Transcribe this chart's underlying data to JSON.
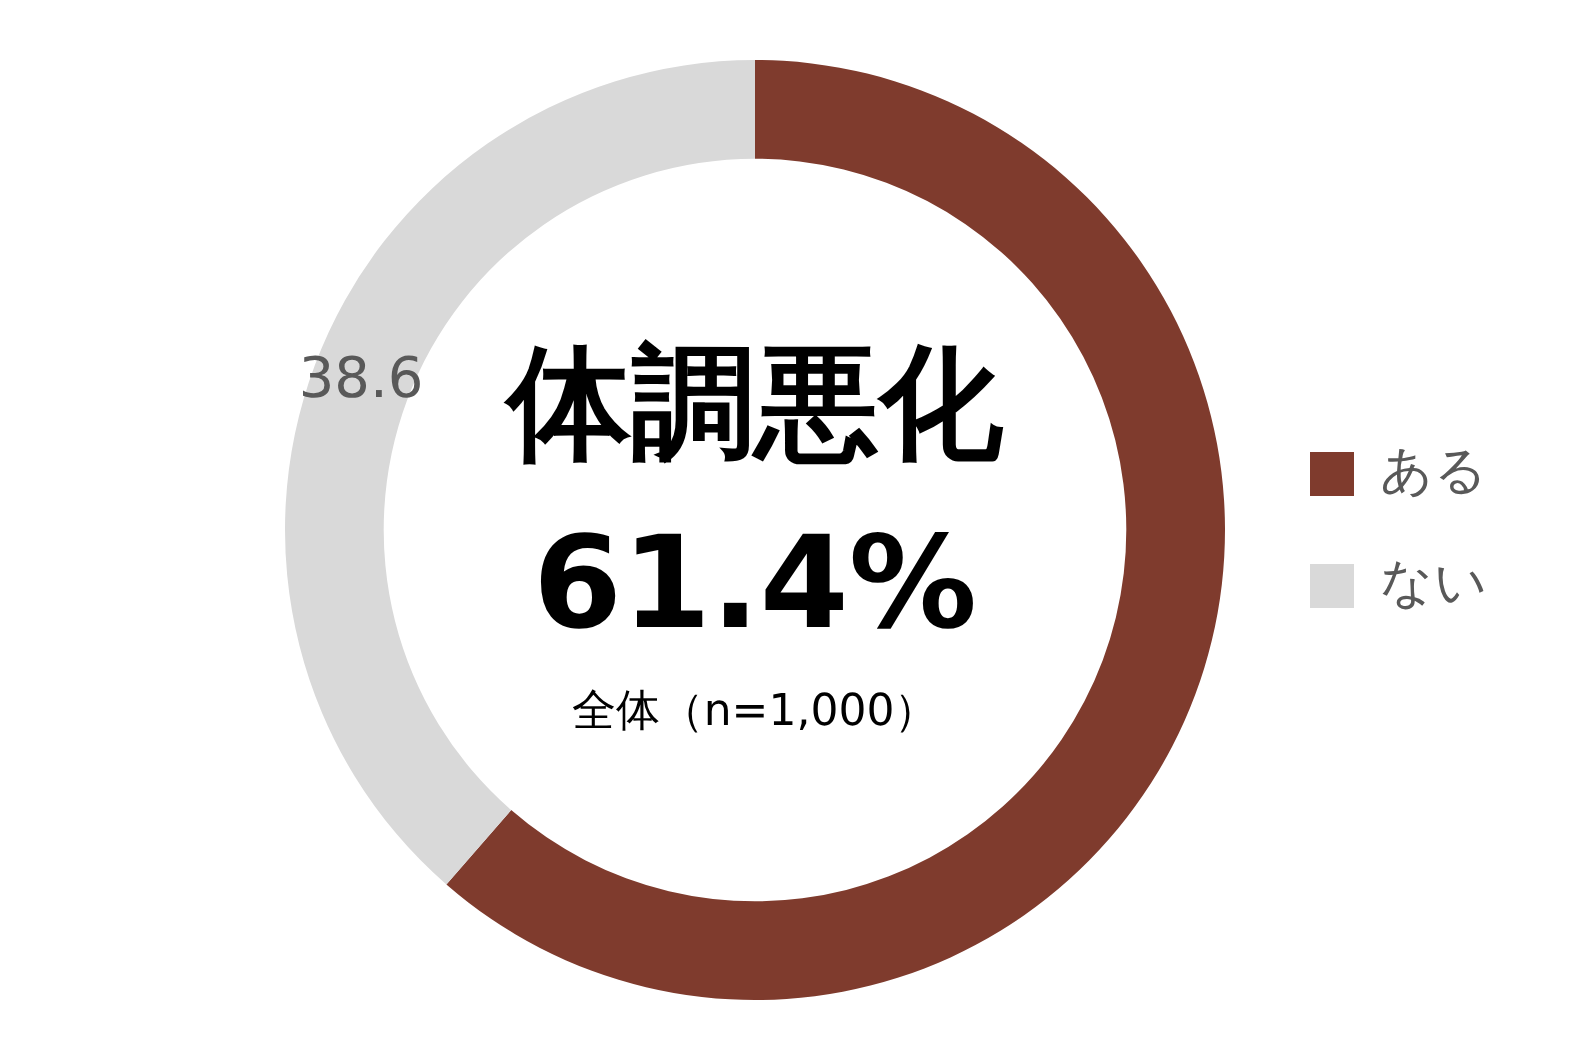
{
  "chart_data": {
    "type": "donut",
    "categories": [
      "ある",
      "ない"
    ],
    "values": [
      61.4,
      38.6
    ],
    "colors": [
      "#7f3b2d",
      "#d9d9d9"
    ],
    "value_labels": [
      null,
      "38.6"
    ],
    "annotations": [
      "体調悪化",
      "61.4%",
      "全体（n=1,000）"
    ],
    "legend": "right"
  }
}
